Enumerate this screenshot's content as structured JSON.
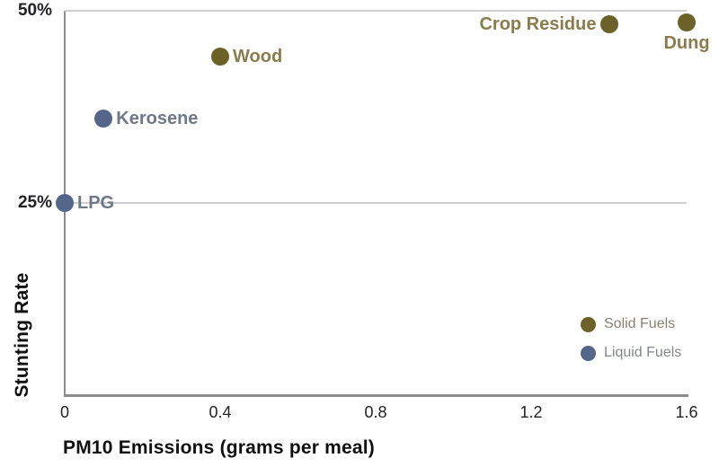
{
  "chart_data": {
    "type": "scatter",
    "title": "",
    "xlabel": "PM10 Emissions (grams per meal)",
    "ylabel": "Stunting Rate",
    "xlim": [
      0,
      1.6
    ],
    "ylim": [
      0,
      50
    ],
    "grid": "horizontal gridlines at y ticks only",
    "x_ticks": [
      {
        "value": 0,
        "label": "0"
      },
      {
        "value": 0.4,
        "label": "0.4"
      },
      {
        "value": 0.8,
        "label": "0.8"
      },
      {
        "value": 1.2,
        "label": "1.2"
      },
      {
        "value": 1.6,
        "label": "1.6"
      }
    ],
    "y_ticks": [
      {
        "value": 25,
        "label": "25%"
      },
      {
        "value": 50,
        "label": "50%"
      }
    ],
    "series": [
      {
        "name": "Solid Fuels",
        "color": "#6b6129",
        "label_color": "#8a7c4b",
        "points": [
          {
            "label": "Wood",
            "x": 0.4,
            "y": 44,
            "label_side": "right"
          },
          {
            "label": "Crop Residue",
            "x": 1.4,
            "y": 48.3,
            "label_side": "left"
          },
          {
            "label": "Dung",
            "x": 1.6,
            "y": 48.5,
            "label_side": "below"
          }
        ]
      },
      {
        "name": "Liquid Fuels",
        "color": "#54668a",
        "label_color": "#6e7889",
        "points": [
          {
            "label": "LPG",
            "x": 0,
            "y": 25,
            "label_side": "right"
          },
          {
            "label": "Kerosene",
            "x": 0.1,
            "y": 36,
            "label_side": "right"
          }
        ]
      }
    ],
    "legend": {
      "position": "bottom-right",
      "entries": [
        {
          "name": "Solid Fuels",
          "color": "#6b6129",
          "label_color": "#8a8271"
        },
        {
          "name": "Liquid Fuels",
          "color": "#54668a",
          "label_color": "#83868d"
        }
      ]
    }
  },
  "palette": {
    "background": "#ffffff",
    "axis_line": "#8c8c8e",
    "gridline": "#cecfd3",
    "tick_text": "#232325",
    "axis_title_text": "#101011"
  }
}
